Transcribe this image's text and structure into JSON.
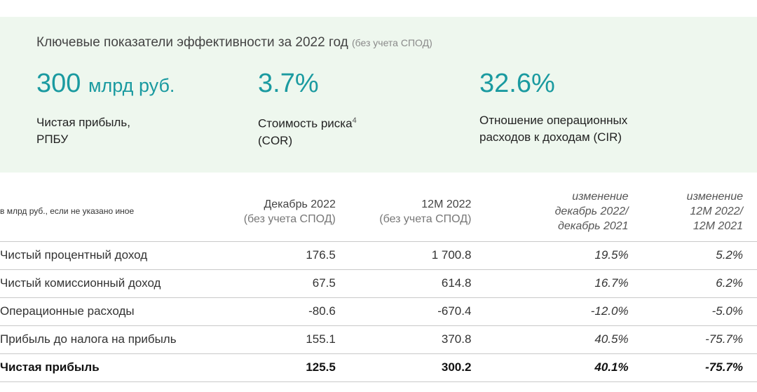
{
  "kpi_title": "Ключевые показатели эффективности за 2022 год",
  "kpi_title_note": "(без учета СПОД)",
  "kpis": [
    {
      "value": "300",
      "unit": "млрд руб.",
      "label_line1": "Чистая прибыль,",
      "label_line2": "РПБУ",
      "footnote": ""
    },
    {
      "value": "3.7%",
      "unit": "",
      "label_line1": "Стоимость риска",
      "label_line2": "(COR)",
      "footnote": "4"
    },
    {
      "value": "32.6%",
      "unit": "",
      "label_line1": "Отношение операционных",
      "label_line2": "расходов к доходам (CIR)",
      "footnote": ""
    }
  ],
  "colors": {
    "accent": "#1a9aa0",
    "panel_bg": "#eef7ee"
  },
  "table": {
    "units_note": "в млрд руб., если не указано иное",
    "headers": [
      {
        "line1": "Декабрь 2022",
        "line2": "(без учета СПОД)",
        "line3": ""
      },
      {
        "line1": "12М 2022",
        "line2": "(без учета СПОД)",
        "line3": ""
      },
      {
        "line1": "изменение",
        "line2": "декабрь 2022/",
        "line3": "декабрь 2021"
      },
      {
        "line1": "изменение",
        "line2": "12М 2022/",
        "line3": "12М 2021"
      }
    ],
    "rows": [
      {
        "label": "Чистый процентный доход",
        "dec": "176.5",
        "ytd": "1 700.8",
        "chg_dec": "19.5%",
        "chg_ytd": "5.2%"
      },
      {
        "label": "Чистый комиссионный доход",
        "dec": "67.5",
        "ytd": "614.8",
        "chg_dec": "16.7%",
        "chg_ytd": "6.2%"
      },
      {
        "label": "Операционные расходы",
        "dec": "-80.6",
        "ytd": "-670.4",
        "chg_dec": "-12.0%",
        "chg_ytd": "-5.0%"
      },
      {
        "label": "Прибыль до налога на прибыль",
        "dec": "155.1",
        "ytd": "370.8",
        "chg_dec": "40.5%",
        "chg_ytd": "-75.7%"
      },
      {
        "label": "Чистая прибыль",
        "dec": "125.5",
        "ytd": "300.2",
        "chg_dec": "40.1%",
        "chg_ytd": "-75.7%"
      }
    ]
  }
}
